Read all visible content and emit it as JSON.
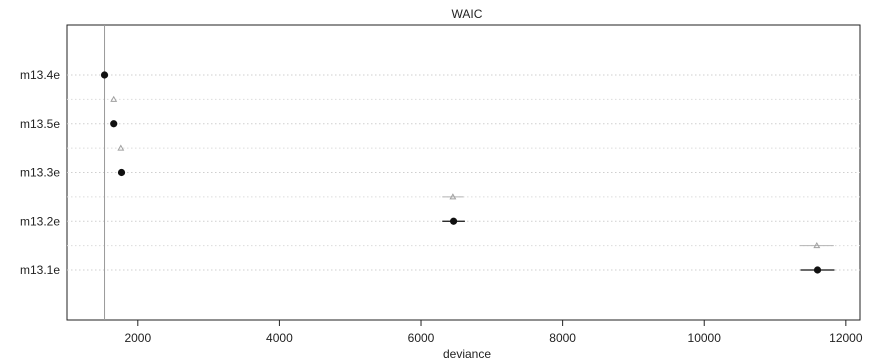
{
  "chart_data": {
    "type": "scatter",
    "title": "WAIC",
    "xlabel": "deviance",
    "ylabel": "",
    "xlim": [
      1000,
      12200
    ],
    "x_ticks": [
      2000,
      4000,
      6000,
      8000,
      10000,
      12000
    ],
    "x_tick_labels": [
      "2000",
      "4000",
      "6000",
      "8000",
      "10000",
      "12000"
    ],
    "models": [
      "m13.4e",
      "m13.5e",
      "m13.3e",
      "m13.2e",
      "m13.1e"
    ],
    "waic": [
      1530,
      1660,
      1770,
      6460,
      11600
    ],
    "waic_interval": [
      [
        1490,
        1570
      ],
      [
        1620,
        1700
      ],
      [
        1730,
        1810
      ],
      [
        6300,
        6620
      ],
      [
        11360,
        11840
      ]
    ],
    "in_sample_deviance": [
      null,
      1660,
      1760,
      6450,
      11590
    ],
    "in_sample_interval": [
      null,
      null,
      null,
      [
        6300,
        6600
      ],
      [
        11350,
        11830
      ]
    ],
    "reference_line_x": 1530,
    "grid": "horizontal dotted",
    "colors": {
      "waic_point": "#111111",
      "deviance_point": "#a0a0a0",
      "reference_line": "#999999",
      "frame": "#222222"
    }
  }
}
